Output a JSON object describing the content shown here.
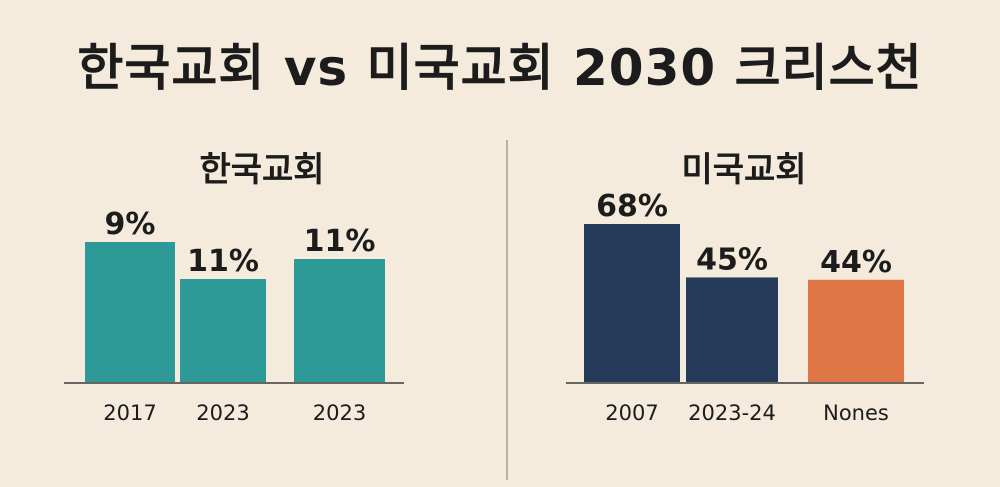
{
  "title": "한국교회 vs 미국교회 2030 크리스천",
  "chart_data": [
    {
      "type": "bar",
      "title": "한국교회",
      "categories": [
        "2017",
        "2023",
        "2023"
      ],
      "values": [
        9,
        11,
        11
      ],
      "value_labels": [
        "9%",
        "11%",
        "11%"
      ],
      "colors": [
        "#2e9a98",
        "#2e9a98",
        "#2e9a98"
      ]
    },
    {
      "type": "bar",
      "title": "미국교회",
      "categories": [
        "2007",
        "2023-24",
        "Nones"
      ],
      "values": [
        68,
        45,
        44
      ],
      "value_labels": [
        "68%",
        "45%",
        "44%"
      ],
      "colors": [
        "#263a5a",
        "#263a5a",
        "#de7544"
      ]
    }
  ]
}
